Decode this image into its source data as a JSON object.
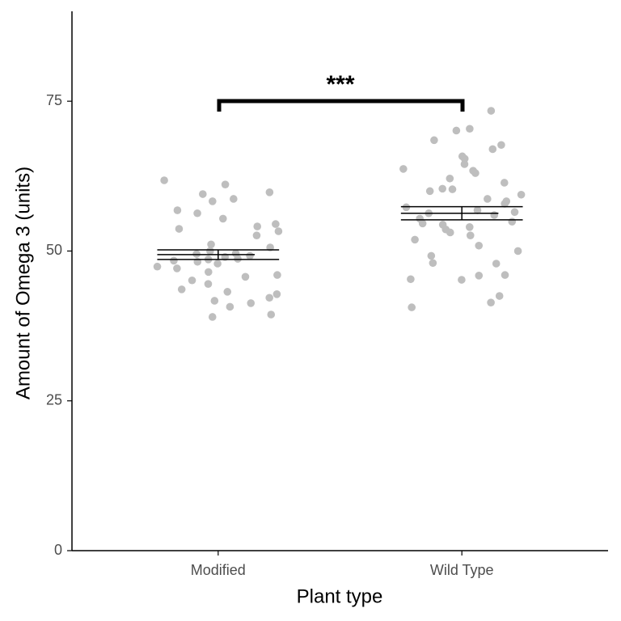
{
  "chart_data": {
    "type": "strip",
    "x_label": "Plant type",
    "y_label": "Amount of Omega 3 (units)",
    "categories": [
      "Modified",
      "Wild Type"
    ],
    "points": [
      [
        59.8,
        61.8,
        61.1,
        59.5,
        58.3,
        58.7,
        56.8,
        56.3,
        55.4,
        54.5,
        54.1,
        53.7,
        53.3,
        52.6,
        51.1,
        50.6,
        50.0,
        49.6,
        49.5,
        49.2,
        49.0,
        48.7,
        48.6,
        48.4,
        48.2,
        47.9,
        47.4,
        47.1,
        46.5,
        46.0,
        45.7,
        45.1,
        44.5,
        43.6,
        43.2,
        42.8,
        42.2,
        41.7,
        41.3,
        40.7,
        39.4,
        39.0
      ],
      [
        73.4,
        70.4,
        70.1,
        68.5,
        67.7,
        67.0,
        65.8,
        65.4,
        64.5,
        63.7,
        63.4,
        63.0,
        62.1,
        61.4,
        60.4,
        60.3,
        60.0,
        59.4,
        58.7,
        58.3,
        57.9,
        57.3,
        56.8,
        56.5,
        56.3,
        56.0,
        55.4,
        54.9,
        54.6,
        54.4,
        54.0,
        53.6,
        53.1,
        52.6,
        51.9,
        50.9,
        50.0,
        49.2,
        48.0,
        47.9,
        46.0,
        45.9,
        45.3,
        45.2,
        42.5,
        41.4,
        40.6
      ]
    ],
    "point_color": "#bebebe",
    "means": [
      49.4,
      56.3
    ],
    "errors": [
      0.8,
      1.1
    ],
    "annotation": "***",
    "ylim": [
      0,
      90
    ],
    "yticks": [
      0,
      25,
      50,
      75
    ]
  }
}
